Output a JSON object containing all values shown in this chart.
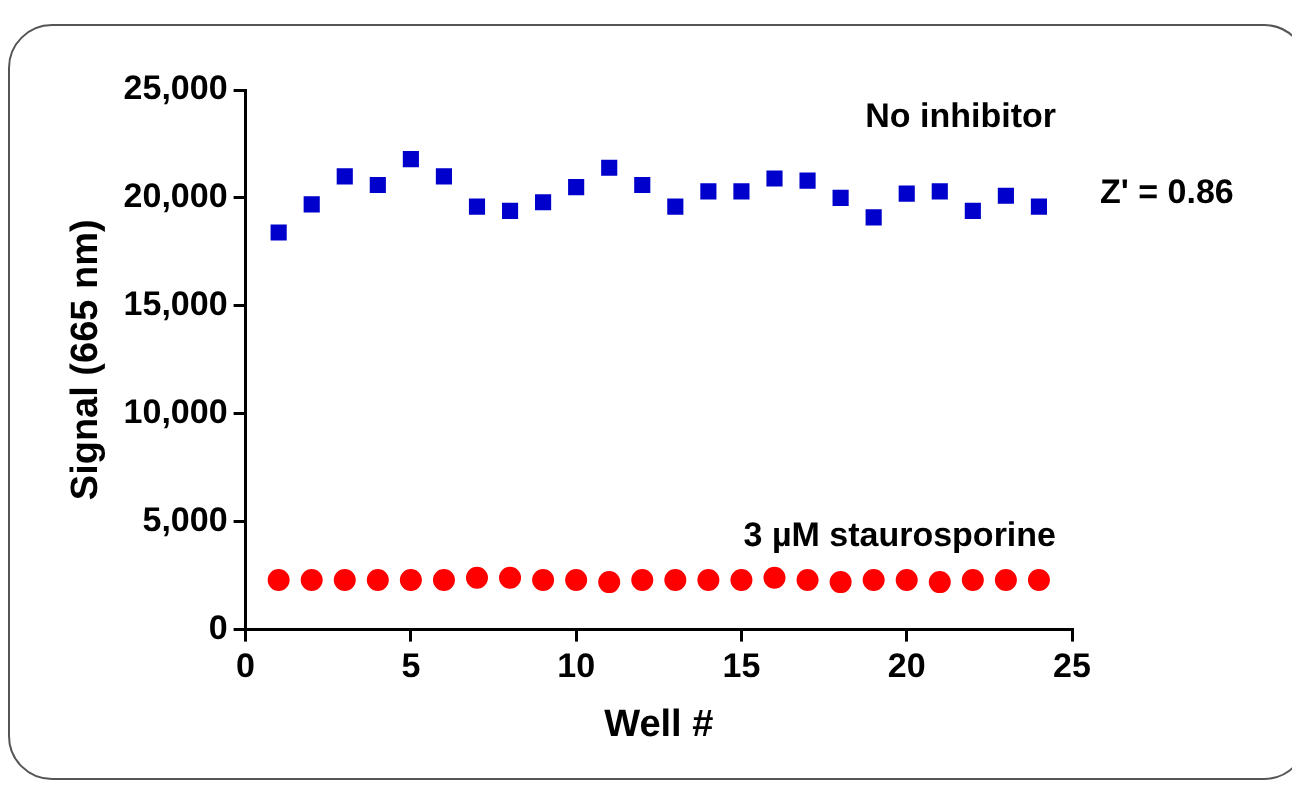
{
  "chart_data": {
    "type": "scatter",
    "xlabel": "Well #",
    "ylabel": "Signal (665 nm)",
    "x": [
      1,
      2,
      3,
      4,
      5,
      6,
      7,
      8,
      9,
      10,
      11,
      12,
      13,
      14,
      15,
      16,
      17,
      18,
      19,
      20,
      21,
      22,
      23,
      24
    ],
    "series": [
      {
        "name": "No inhibitor",
        "color": "#0000cc",
        "marker": "square",
        "values": [
          18400,
          19700,
          21000,
          20600,
          21800,
          21000,
          19600,
          19400,
          19800,
          20500,
          21400,
          20600,
          19600,
          20300,
          20300,
          20900,
          20800,
          20000,
          19100,
          20200,
          20300,
          19400,
          20100,
          19600
        ]
      },
      {
        "name": "3 µM staurosporine",
        "color": "#ff0000",
        "marker": "circle",
        "values": [
          2300,
          2300,
          2300,
          2300,
          2300,
          2300,
          2400,
          2400,
          2300,
          2300,
          2200,
          2300,
          2300,
          2300,
          2300,
          2400,
          2300,
          2200,
          2300,
          2300,
          2200,
          2300,
          2300,
          2300
        ]
      }
    ],
    "xlim": [
      0,
      25
    ],
    "xticks": [
      0,
      5,
      10,
      15,
      20,
      25
    ],
    "ylim": [
      0,
      25000
    ],
    "yticks": [
      0,
      {
        "value": 5000,
        "label": "5,000"
      },
      {
        "value": 10000,
        "label": "10,000"
      },
      {
        "value": 15000,
        "label": "15,000"
      },
      {
        "value": 20000,
        "label": "20,000"
      },
      {
        "value": 25000,
        "label": "25,000"
      }
    ],
    "grid": false,
    "legend": false,
    "annotations": [
      "Z' = 0.86"
    ]
  }
}
